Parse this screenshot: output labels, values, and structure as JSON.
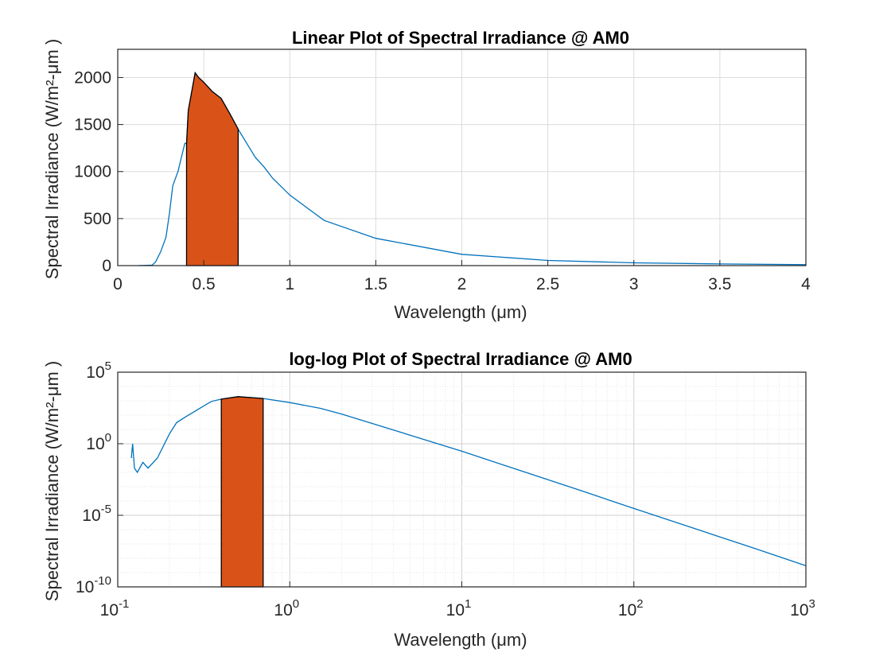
{
  "colors": {
    "spectrum": "#0072bd",
    "visible_fill": "#d95319",
    "visible_edge": "#000000",
    "grid": "#dcdcdc",
    "axes": "#262626"
  },
  "chart_data": [
    {
      "type": "area",
      "title": "Linear Plot of Spectral Irradiance @ AM0",
      "xlabel": "Wavelength (μm)",
      "ylabel": "Spectral Irradiance (W/m²-μm )",
      "xlim": [
        0,
        4
      ],
      "ylim": [
        0,
        2300
      ],
      "xscale": "linear",
      "yscale": "linear",
      "grid": true,
      "xticks": [
        0,
        0.5,
        1,
        1.5,
        2,
        2.5,
        3,
        3.5,
        4
      ],
      "xtick_labels": [
        "0",
        "0.5",
        "1",
        "1.5",
        "2",
        "2.5",
        "3",
        "3.5",
        "4"
      ],
      "yticks": [
        0,
        500,
        1000,
        1500,
        2000
      ],
      "ytick_labels": [
        "0",
        "500",
        "1000",
        "1500",
        "2000"
      ],
      "highlight_range": [
        0.4,
        0.7
      ],
      "series": [
        {
          "x": [
            0.12,
            0.2,
            0.22,
            0.25,
            0.28,
            0.3,
            0.32,
            0.35,
            0.37,
            0.39,
            0.4,
            0.41,
            0.43,
            0.45,
            0.47,
            0.5,
            0.55,
            0.6,
            0.65,
            0.7,
            0.75,
            0.8,
            0.85,
            0.9,
            1.0,
            1.2,
            1.5,
            2.0,
            2.5,
            3.0,
            3.5,
            4.0
          ],
          "y": [
            0,
            5,
            40,
            150,
            300,
            550,
            850,
            1000,
            1150,
            1300,
            1300,
            1650,
            1850,
            2050,
            2000,
            1950,
            1850,
            1780,
            1620,
            1450,
            1300,
            1150,
            1050,
            930,
            750,
            480,
            290,
            120,
            55,
            30,
            18,
            10
          ]
        }
      ]
    },
    {
      "type": "area",
      "title": "log-log Plot of Spectral Irradiance @ AM0",
      "xlabel": "Wavelength (μm)",
      "ylabel": "Spectral Irradiance (W/m²-μm )",
      "xlim": [
        0.1,
        1000
      ],
      "ylim": [
        1e-10,
        100000
      ],
      "xscale": "log",
      "yscale": "log",
      "grid": true,
      "xticks_exp": [
        -1,
        0,
        1,
        2,
        3
      ],
      "xtick_labels": [
        "10",
        "10",
        "10",
        "10",
        "10"
      ],
      "xtick_powers": [
        "-1",
        "0",
        "1",
        "2",
        "3"
      ],
      "yticks_exp": [
        -10,
        -5,
        0,
        5
      ],
      "ytick_labels": [
        "10",
        "10",
        "10",
        "10"
      ],
      "ytick_powers": [
        "-10",
        "-5",
        "0",
        "5"
      ],
      "highlight_range": [
        0.4,
        0.7
      ],
      "series": [
        {
          "x": [
            0.12,
            0.122,
            0.125,
            0.13,
            0.14,
            0.15,
            0.17,
            0.2,
            0.22,
            0.25,
            0.3,
            0.35,
            0.4,
            0.5,
            0.7,
            1.0,
            1.5,
            2,
            5,
            10,
            50,
            100,
            500,
            1000
          ],
          "y": [
            0.1,
            1,
            0.02,
            0.01,
            0.05,
            0.02,
            0.1,
            5,
            30,
            80,
            300,
            900,
            1300,
            1950,
            1450,
            750,
            300,
            120,
            4,
            0.3,
            0.0005,
            3e-05,
            5e-08,
            3e-09
          ]
        }
      ]
    }
  ]
}
